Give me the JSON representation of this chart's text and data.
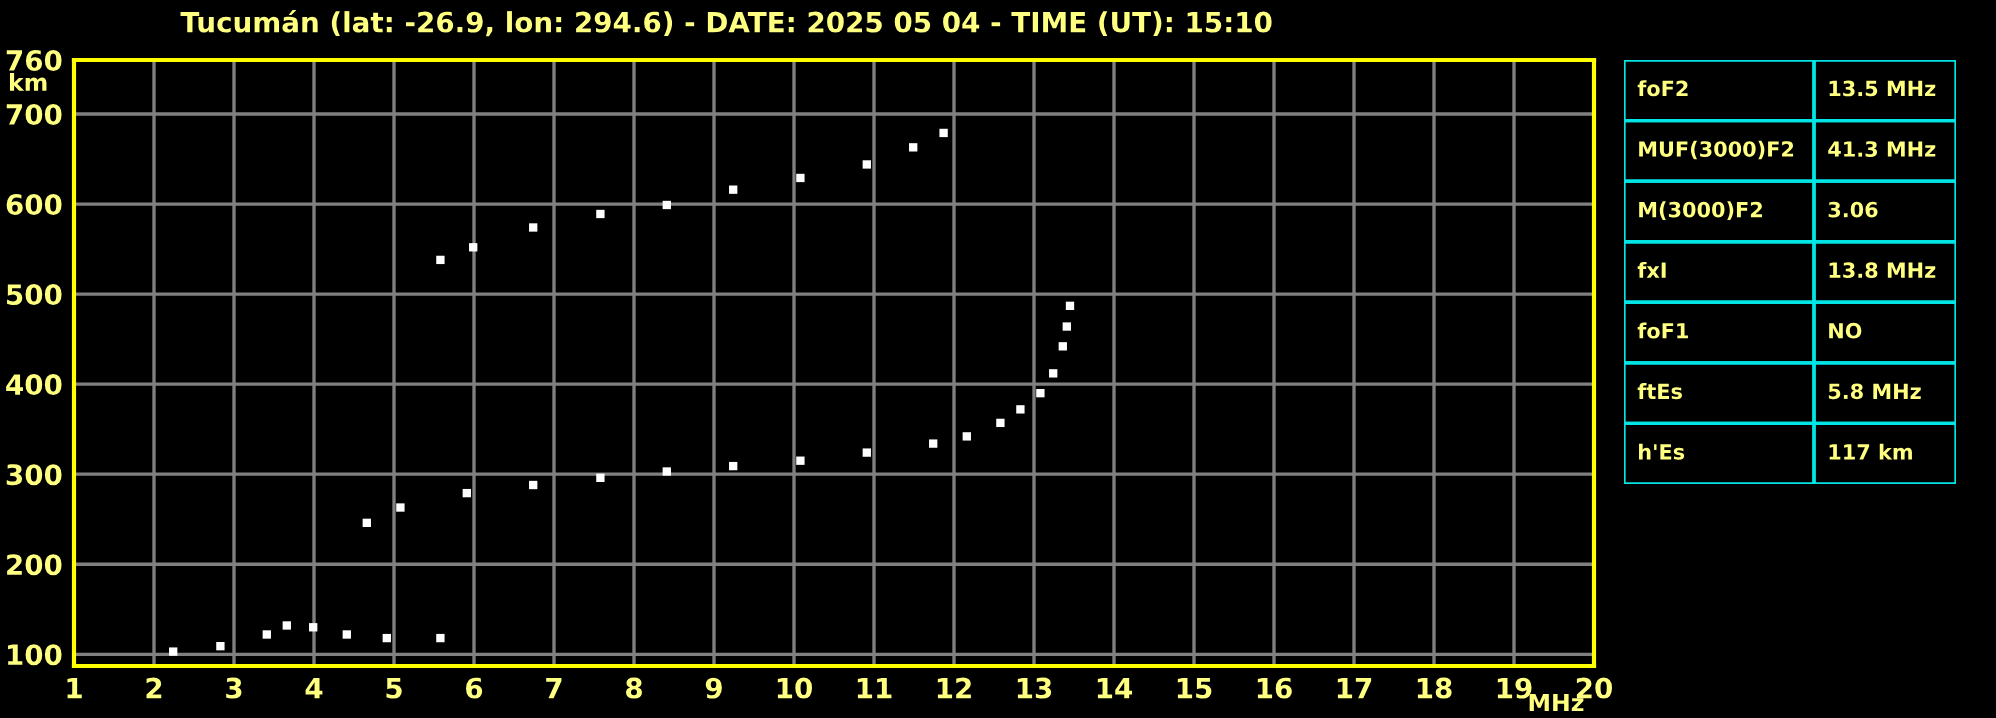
{
  "chart_data": [
    {
      "type": "scatter",
      "title": "Tucumán (lat: -26.9, lon: 294.6) - DATE: 2025 05 04 - TIME (UT): 15:10",
      "xlabel": "MHz",
      "ylabel": "km",
      "series": [
        {
          "color": "#ffffff",
          "x": [
            4.66,
            5.08,
            5.91,
            6.74,
            7.58,
            8.41,
            9.24,
            10.08,
            10.91,
            11.74,
            12.16,
            12.58,
            12.83,
            13.08,
            13.24,
            13.36,
            13.41,
            13.45
          ],
          "values": [
            246,
            263,
            279,
            288,
            296,
            303,
            309,
            315,
            324,
            334,
            342,
            357,
            372,
            390,
            412,
            442,
            464,
            487
          ]
        },
        {
          "color": "#ffffff",
          "x": [
            5.58,
            5.99,
            6.74,
            7.58,
            8.41,
            9.24,
            10.08,
            10.91,
            11.49,
            11.87
          ],
          "values": [
            538,
            552,
            574,
            589,
            599,
            616,
            629,
            644,
            663,
            679
          ]
        },
        {
          "color": "#ffffff",
          "x": [
            2.24,
            2.83,
            3.41,
            3.66,
            3.99,
            4.41,
            4.91,
            5.58
          ],
          "values": [
            103,
            109,
            122,
            132,
            130,
            122,
            118,
            118
          ]
        }
      ],
      "xlim": [
        1,
        20
      ],
      "xticks": [
        1,
        2,
        3,
        4,
        5,
        6,
        7,
        8,
        9,
        10,
        11,
        12,
        13,
        14,
        15,
        16,
        17,
        18,
        19,
        20
      ],
      "ylim": [
        87,
        760
      ],
      "yticks": [
        100,
        200,
        300,
        400,
        500,
        600,
        700,
        760
      ],
      "grid": true,
      "marker": "square"
    },
    {
      "type": "other",
      "y_categories": [
        "foF2",
        "MUF(3000)F2",
        "M(3000)F2",
        "fxI",
        "foF1",
        "ftEs",
        "h'Es"
      ],
      "cell_labels": [
        [
          "13.5 MHz"
        ],
        [
          "41.3 MHz"
        ],
        [
          "3.06"
        ],
        [
          "13.8 MHz"
        ],
        [
          "NO"
        ],
        [
          "5.8 MHz"
        ],
        [
          "117 km"
        ]
      ]
    }
  ]
}
